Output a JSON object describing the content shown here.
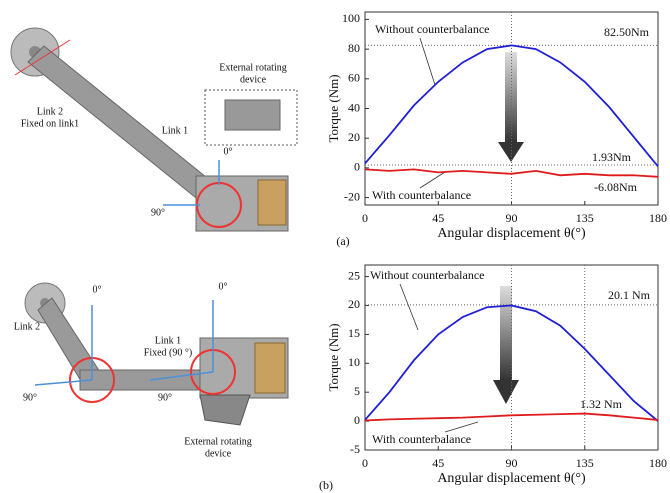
{
  "chart_data": [
    {
      "type": "line",
      "xlabel": "Angular displacement θ(°)",
      "ylabel": "Torque (Nm)",
      "x": [
        0,
        15,
        30,
        45,
        60,
        75,
        90,
        105,
        120,
        135,
        150,
        165,
        180
      ],
      "series": [
        {
          "name": "Without counterbalance",
          "color": "#1f1fd6",
          "values": [
            3,
            22,
            42,
            58,
            71,
            80,
            82.5,
            80,
            71,
            58,
            41,
            21,
            1
          ]
        },
        {
          "name": "With counterbalance",
          "color": "#e01b1b",
          "values": [
            -1,
            -2,
            -1,
            -3,
            -2,
            -3,
            -4,
            -2,
            -5,
            -4,
            -5,
            -5,
            -6
          ]
        }
      ],
      "xlim": [
        0,
        180
      ],
      "xticks": [
        0,
        45,
        90,
        135,
        180
      ],
      "ylim": [
        -25,
        105
      ],
      "yticks": [
        -20,
        0,
        20,
        40,
        60,
        80,
        100
      ],
      "hlines": [
        82.5,
        1.93
      ],
      "vlines": [
        90
      ],
      "annotations": [
        "82.50Nm",
        "1.93Nm",
        "-6.08Nm"
      ],
      "panel_label": "(a)"
    },
    {
      "type": "line",
      "xlabel": "Angular displacement θ(°)",
      "ylabel": "Torque (Nm)",
      "x": [
        0,
        15,
        30,
        45,
        60,
        75,
        90,
        105,
        120,
        135,
        150,
        165,
        180
      ],
      "series": [
        {
          "name": "Without counterbalance",
          "color": "#1f1fd6",
          "values": [
            0.2,
            5,
            10.5,
            15,
            18,
            19.7,
            20,
            19,
            16.5,
            12.5,
            8,
            3.5,
            0
          ]
        },
        {
          "name": "With counterbalance",
          "color": "#e01b1b",
          "values": [
            0.1,
            0.3,
            0.4,
            0.5,
            0.6,
            0.8,
            1,
            1.1,
            1.2,
            1.3,
            1,
            0.6,
            0.2
          ]
        }
      ],
      "xlim": [
        0,
        180
      ],
      "xticks": [
        0,
        45,
        90,
        135,
        180
      ],
      "ylim": [
        -5,
        27
      ],
      "yticks": [
        -5,
        0,
        5,
        10,
        15,
        20,
        25
      ],
      "hlines": [
        20.1
      ],
      "vlines": [
        90,
        135
      ],
      "annotations": [
        "20.1 Nm",
        "1.32 Nm"
      ],
      "panel_label": "(b)"
    }
  ],
  "illustrations": [
    {
      "labels": [
        "External rotating",
        "device",
        "Link 2",
        "Fixed on link1",
        "Link 1",
        "0°",
        "90°"
      ]
    },
    {
      "labels": [
        "0°",
        "0°",
        "Link 1",
        "Fixed (90 °)",
        "Link 2",
        "90°",
        "90°",
        "External rotating",
        "device"
      ]
    }
  ]
}
